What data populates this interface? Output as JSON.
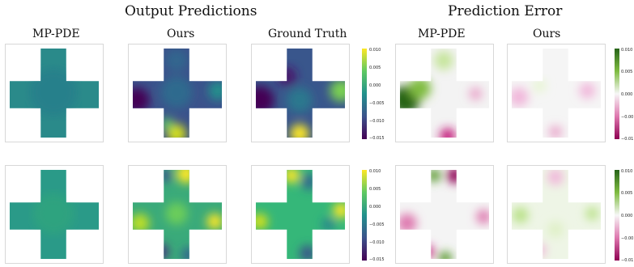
{
  "headers": {
    "output_predictions": "Output Predictions",
    "prediction_error": "Prediction Error"
  },
  "columns": {
    "mp_pde": "MP-PDE",
    "ours": "Ours",
    "ground_truth": "Ground Truth",
    "err_mp_pde": "MP-PDE",
    "err_ours": "Ours"
  },
  "colorbars": {
    "viridis": {
      "colormap": "viridis",
      "min": -0.015,
      "max": 0.01,
      "ticks": [
        "0.010",
        "0.005",
        "0.000",
        "−0.005",
        "−0.010",
        "−0.015"
      ]
    },
    "piyg": {
      "colormap": "PiYG",
      "min": -0.01,
      "max": 0.01,
      "ticks": [
        "0.010",
        "0.005",
        "0.000",
        "−0.00",
        "−0.01"
      ]
    }
  },
  "colors": {
    "viridis": [
      "#fde725",
      "#5ec962",
      "#21918c",
      "#3b528b",
      "#440154"
    ],
    "piyg": [
      "#276419",
      "#7fbc41",
      "#f7f7f7",
      "#de77ae",
      "#8e0152"
    ]
  }
}
